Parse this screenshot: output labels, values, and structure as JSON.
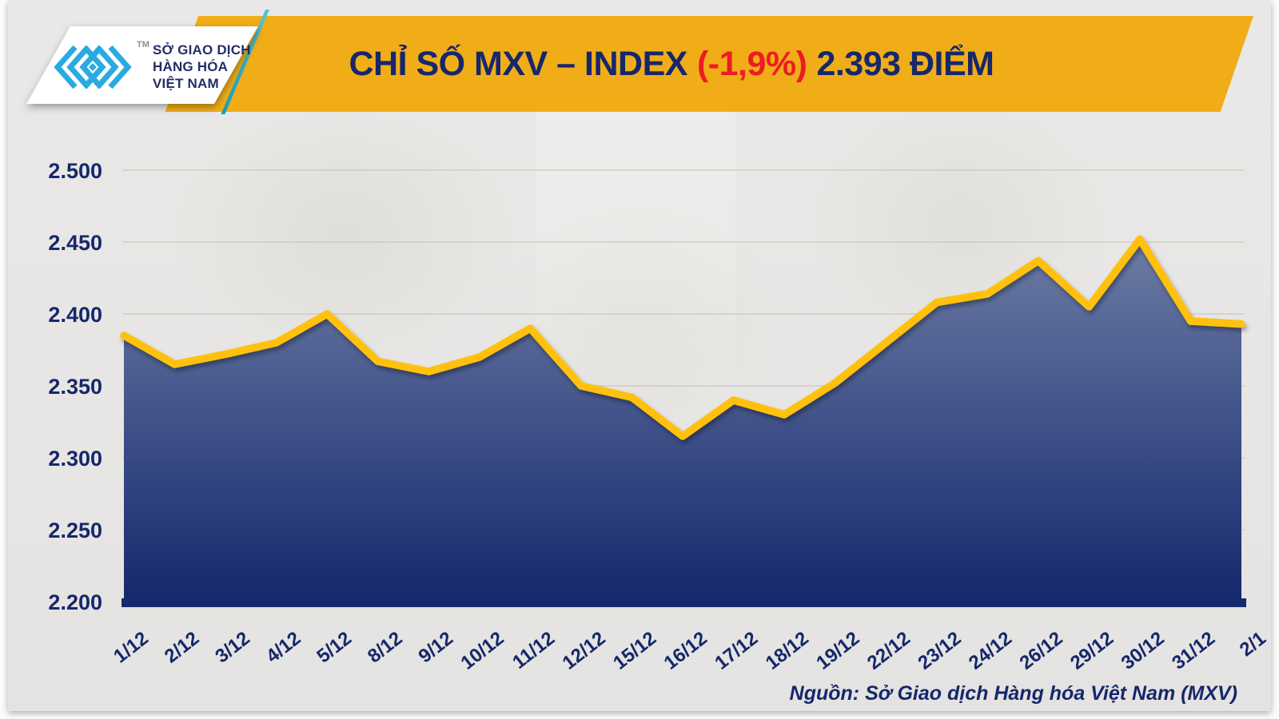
{
  "logo": {
    "org_line1": "SỞ GIAO DỊCH",
    "org_line2": "HÀNG HÓA",
    "org_line3": "VIỆT NAM",
    "trademark": "TM",
    "icon_color": "#29ABE2"
  },
  "banner": {
    "title_prefix": "CHỈ SỐ MXV – INDEX",
    "title_change": "(-1,9%)",
    "title_suffix": "2.393 ĐIỂM",
    "bg_color": "#F0AD18",
    "text_color": "#16276B",
    "change_color": "#EC1C23"
  },
  "footer": {
    "source": "Nguồn: Sở Giao dịch Hàng hóa Việt Nam (MXV)"
  },
  "chart_data": {
    "type": "area",
    "title": "CHỈ SỐ MXV – INDEX (-1,9%) 2.393 ĐIỂM",
    "x": [
      "1/12",
      "2/12",
      "3/12",
      "4/12",
      "5/12",
      "8/12",
      "9/12",
      "10/12",
      "11/12",
      "12/12",
      "15/12",
      "16/12",
      "17/12",
      "18/12",
      "19/12",
      "22/12",
      "23/12",
      "24/12",
      "26/12",
      "29/12",
      "30/12",
      "31/12",
      "2/1"
    ],
    "series": [
      {
        "name": "MXV-Index",
        "values": [
          2385,
          2365,
          2372,
          2380,
          2400,
          2367,
          2360,
          2370,
          2390,
          2350,
          2342,
          2315,
          2340,
          2330,
          2352,
          2380,
          2408,
          2414,
          2437,
          2405,
          2452,
          2395,
          2393
        ]
      }
    ],
    "ylim": [
      2200,
      2500
    ],
    "yticks": [
      2500,
      2450,
      2400,
      2350,
      2300,
      2250,
      2200
    ],
    "ytick_labels": [
      "2.500",
      "2.450",
      "2.400",
      "2.350",
      "2.300",
      "2.250",
      "2.200"
    ],
    "grid": true,
    "legend": "none",
    "x_label_rotation": -38,
    "line_color": "#FFC10E",
    "area_gradient_top": "#6C7CA4",
    "area_gradient_bottom": "#15286D",
    "axis_bar_color": "#16296D",
    "gridline_color": "#C9C8C5",
    "tick_label_color": "#16276B"
  }
}
